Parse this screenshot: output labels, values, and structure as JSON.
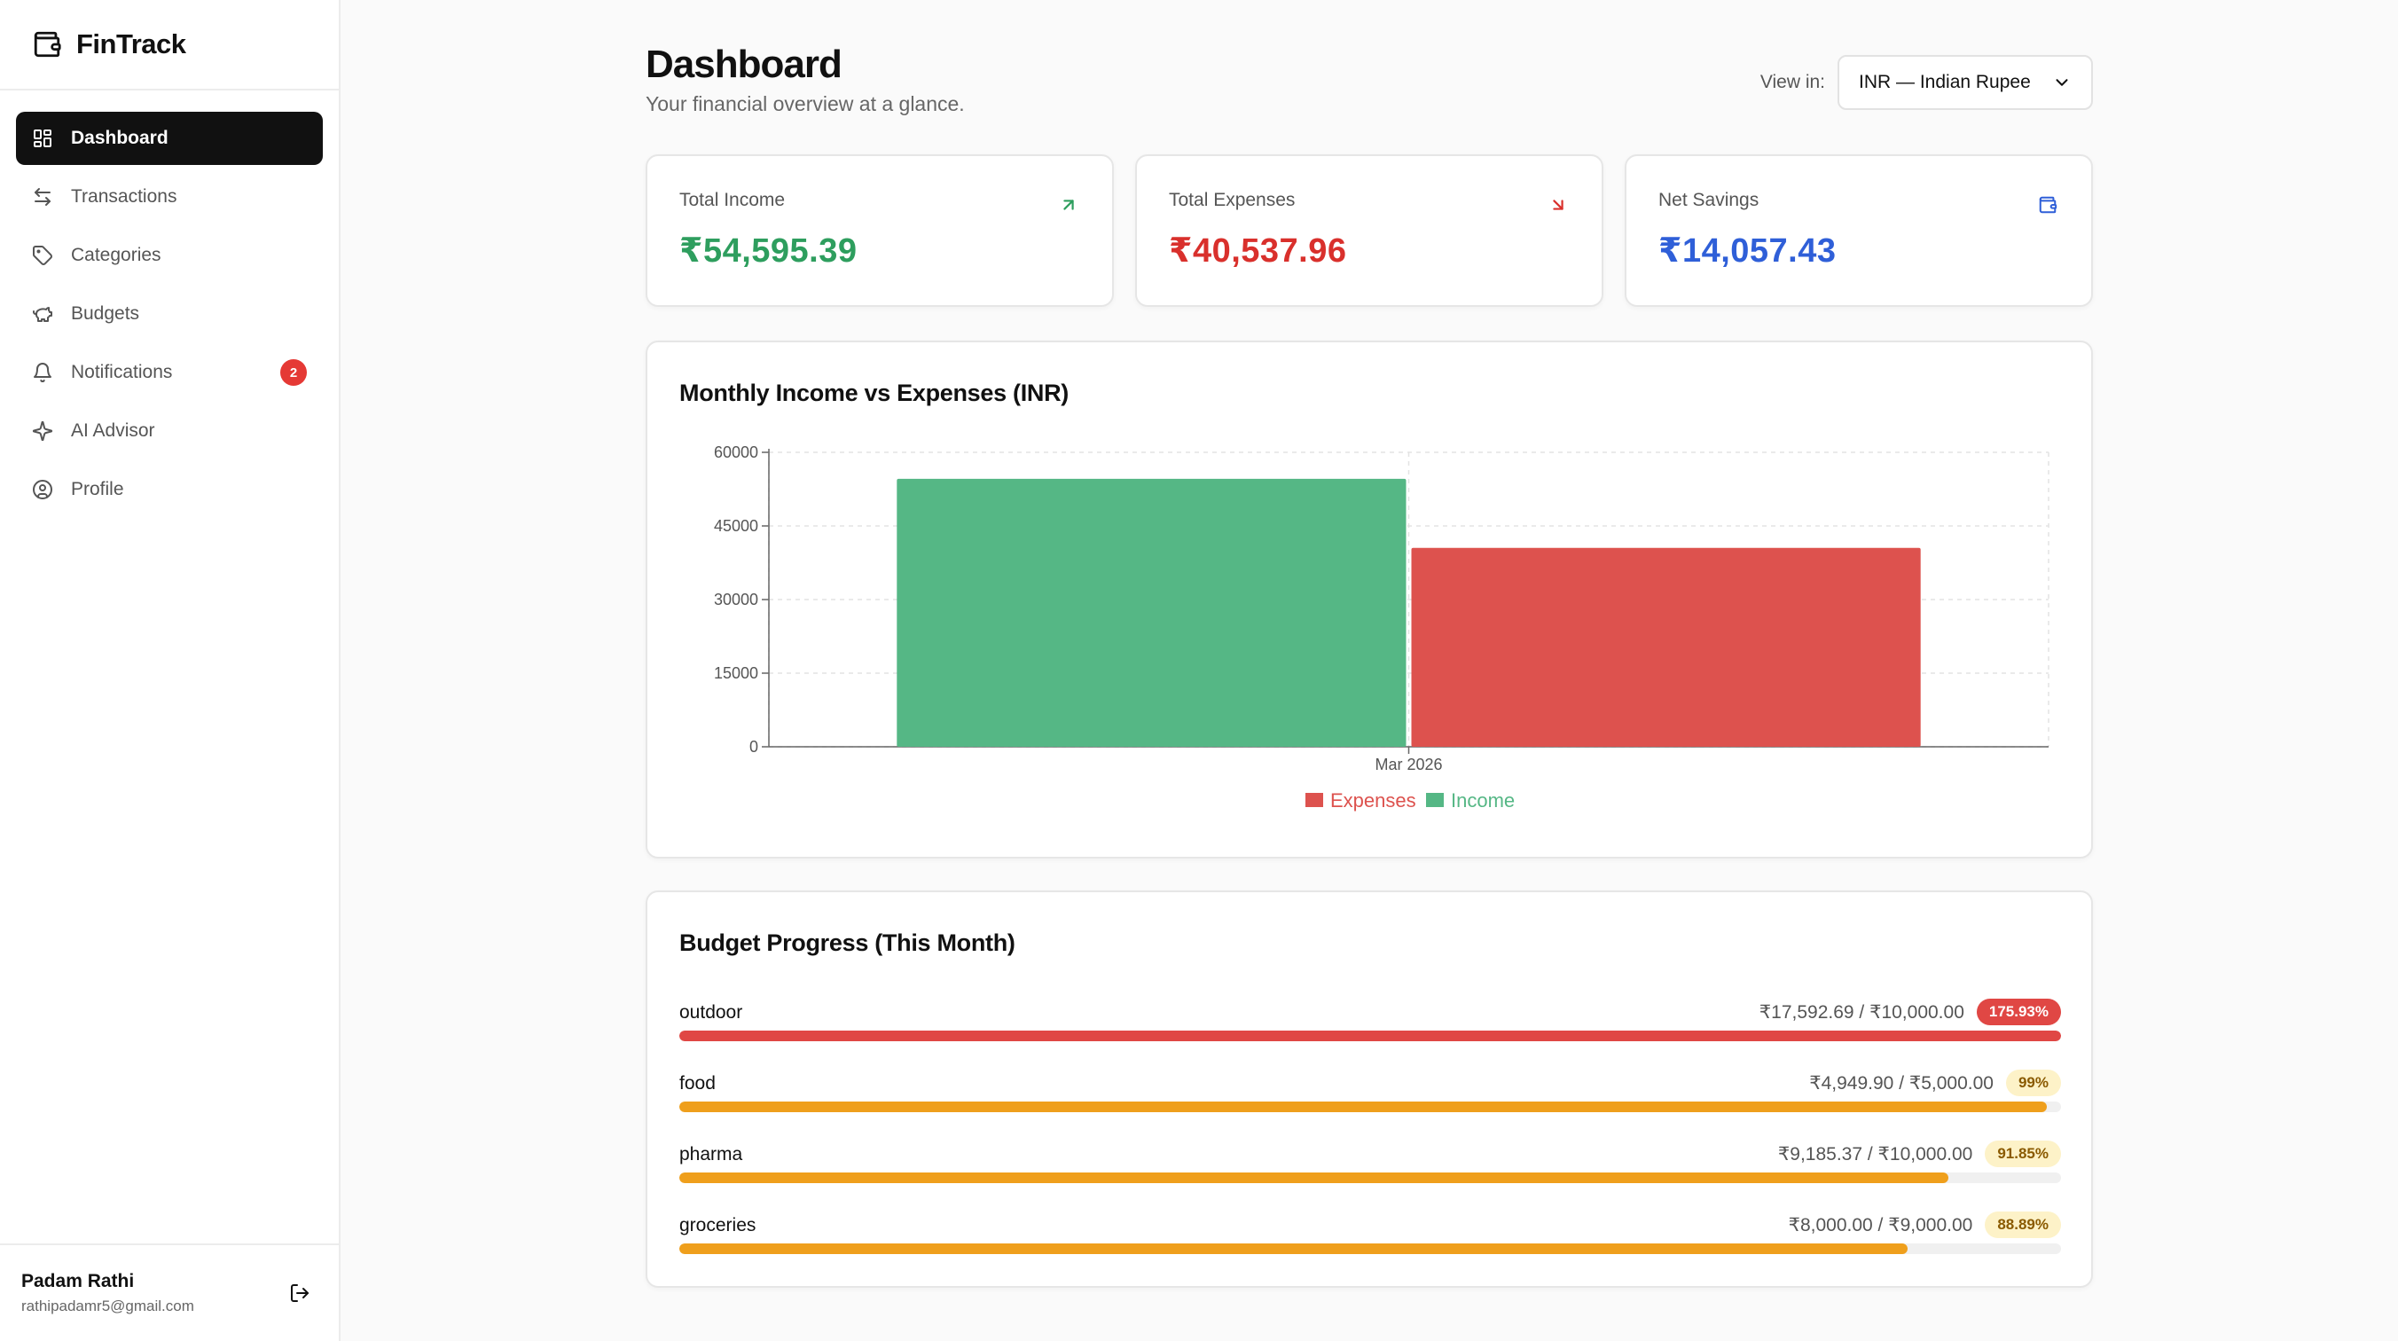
{
  "app": {
    "name": "FinTrack"
  },
  "sidebar": {
    "items": [
      {
        "label": "Dashboard",
        "icon": "dashboard-grid-icon",
        "active": true
      },
      {
        "label": "Transactions",
        "icon": "arrows-left-right-icon"
      },
      {
        "label": "Categories",
        "icon": "tag-icon"
      },
      {
        "label": "Budgets",
        "icon": "piggy-bank-icon"
      },
      {
        "label": "Notifications",
        "icon": "bell-icon",
        "badge": "2"
      },
      {
        "label": "AI Advisor",
        "icon": "sparkles-icon"
      },
      {
        "label": "Profile",
        "icon": "user-circle-icon"
      }
    ]
  },
  "user": {
    "name": "Padam Rathi",
    "email": "rathipadamr5@gmail.com"
  },
  "header": {
    "title": "Dashboard",
    "subtitle": "Your financial overview at a glance.",
    "view_in_label": "View in:",
    "currency_selected": "INR — Indian Rupee"
  },
  "stats": {
    "income": {
      "label": "Total Income",
      "value": "₹54,595.39",
      "color": "#2e9e5e",
      "icon": "arrow-up-right-icon"
    },
    "expenses": {
      "label": "Total Expenses",
      "value": "₹40,537.96",
      "color": "#d9302c",
      "icon": "arrow-down-right-icon"
    },
    "savings": {
      "label": "Net Savings",
      "value": "₹14,057.43",
      "color": "#2f5fd8",
      "icon": "wallet-icon"
    }
  },
  "chart": {
    "title": "Monthly Income vs Expenses (INR)"
  },
  "chart_data": {
    "type": "bar",
    "categories": [
      "Mar 2026"
    ],
    "series": [
      {
        "name": "Income",
        "values": [
          54595.39
        ],
        "color": "#55b785"
      },
      {
        "name": "Expenses",
        "values": [
          40537.96
        ],
        "color": "#dd524e"
      }
    ],
    "legend_order": [
      "Expenses",
      "Income"
    ],
    "ylim": [
      0,
      60000
    ],
    "yticks": [
      0,
      15000,
      30000,
      45000,
      60000
    ],
    "grid": true,
    "legend_position": "bottom-center"
  },
  "budgets": {
    "title": "Budget Progress (This Month)",
    "items": [
      {
        "name": "outdoor",
        "amount": "₹17,592.69 / ₹10,000.00",
        "percent_label": "175.93%",
        "progress": 1.0,
        "level": "over"
      },
      {
        "name": "food",
        "amount": "₹4,949.90 / ₹5,000.00",
        "percent_label": "99%",
        "progress": 0.99,
        "level": "warn"
      },
      {
        "name": "pharma",
        "amount": "₹9,185.37 / ₹10,000.00",
        "percent_label": "91.85%",
        "progress": 0.9185,
        "level": "warn"
      },
      {
        "name": "groceries",
        "amount": "₹8,000.00 / ₹9,000.00",
        "percent_label": "88.89%",
        "progress": 0.8889,
        "level": "warn"
      }
    ],
    "colors": {
      "over": {
        "bar": "#e04744",
        "badge_bg": "#e04744",
        "badge_fg": "#ffffff"
      },
      "warn": {
        "bar": "#ef9f1c",
        "badge_bg": "#fdf2c8",
        "badge_fg": "#8a5a00"
      }
    }
  }
}
